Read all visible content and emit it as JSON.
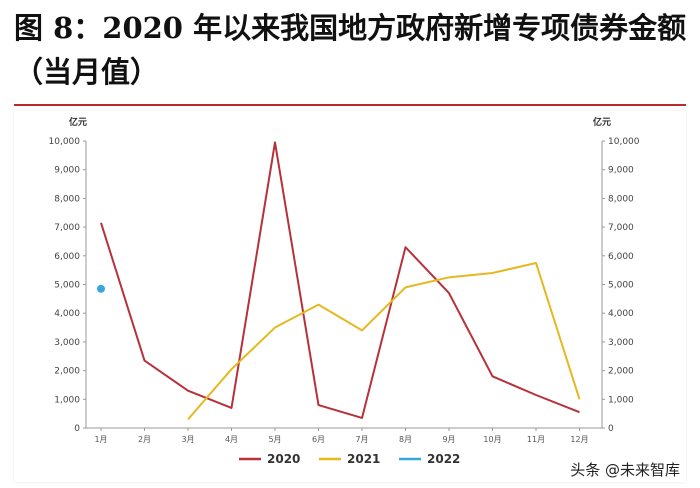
{
  "page": {
    "title": "图 8：2020 年以来我国地方政府新增专项债券金额（当月值）",
    "watermark": "头条 @未来智库"
  },
  "chart_data": {
    "type": "line",
    "title": "",
    "xlabel": "",
    "ylabel_left": "亿元",
    "ylabel_right": "亿元",
    "ylim": [
      0,
      10000
    ],
    "yticks": [
      0,
      1000,
      2000,
      3000,
      4000,
      5000,
      6000,
      7000,
      8000,
      9000,
      10000
    ],
    "ytick_labels": [
      "0",
      "1,000",
      "2,000",
      "3,000",
      "4,000",
      "5,000",
      "6,000",
      "7,000",
      "8,000",
      "9,000",
      "10,000"
    ],
    "categories": [
      "1月",
      "2月",
      "3月",
      "4月",
      "5月",
      "6月",
      "7月",
      "8月",
      "9月",
      "10月",
      "11月",
      "12月"
    ],
    "grid": false,
    "legend_position": "bottom",
    "series": [
      {
        "name": "2020",
        "color": "#b7313a",
        "values": [
          7150,
          2350,
          1300,
          700,
          9950,
          800,
          350,
          6300,
          4700,
          1800,
          1150,
          550
        ]
      },
      {
        "name": "2021",
        "color": "#e6b820",
        "values": [
          null,
          null,
          300,
          2050,
          3500,
          4300,
          3400,
          4900,
          5250,
          5400,
          5750,
          1000
        ]
      },
      {
        "name": "2022",
        "color": "#3aa7dc",
        "values": [
          4850,
          null,
          null,
          null,
          null,
          null,
          null,
          null,
          null,
          null,
          null,
          null
        ]
      }
    ]
  }
}
